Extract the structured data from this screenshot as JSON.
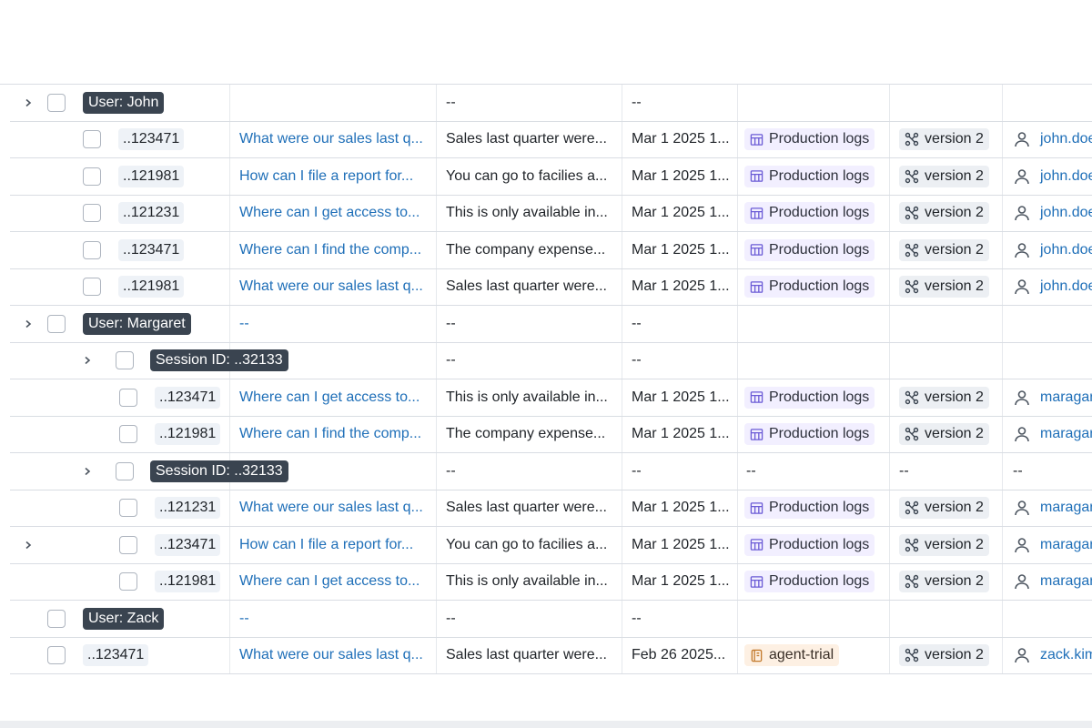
{
  "empty": "--",
  "rows": [
    {
      "kind": "group",
      "label": "User: John",
      "expand": true,
      "question": null,
      "answer": "--",
      "date": "--",
      "dataset": null,
      "version": null,
      "user": null
    },
    {
      "kind": "trace",
      "indent": 1,
      "id": "..123471",
      "question": "What were our sales last q...",
      "answer": "Sales last quarter were...",
      "date": "Mar 1 2025 1...",
      "dataset": "Production logs",
      "dataset_type": "table",
      "version": "version 2",
      "user": "john.doe"
    },
    {
      "kind": "trace",
      "indent": 1,
      "id": "..121981",
      "question": "How can I file a report for...",
      "answer": "You can go to facilies a...",
      "date": "Mar 1 2025 1...",
      "dataset": "Production logs",
      "dataset_type": "table",
      "version": "version 2",
      "user": "john.doe"
    },
    {
      "kind": "trace",
      "indent": 1,
      "id": "..121231",
      "question": "Where can I get access to...",
      "answer": "This is only available in...",
      "date": "Mar 1 2025 1...",
      "dataset": "Production logs",
      "dataset_type": "table",
      "version": "version 2",
      "user": "john.doe"
    },
    {
      "kind": "trace",
      "indent": 1,
      "id": "..123471",
      "question": "Where can I find the comp...",
      "answer": "The company expense...",
      "date": "Mar 1 2025 1...",
      "dataset": "Production logs",
      "dataset_type": "table",
      "version": "version 2",
      "user": "john.doe"
    },
    {
      "kind": "trace",
      "indent": 1,
      "id": "..121981",
      "question": "What were our sales last q...",
      "answer": "Sales last quarter were...",
      "date": "Mar 1 2025 1...",
      "dataset": "Production logs",
      "dataset_type": "table",
      "version": "version 2",
      "user": "john.doe"
    },
    {
      "kind": "group",
      "label": "User: Margaret",
      "expand": true,
      "question": "--",
      "answer": "--",
      "date": "--",
      "dataset": null,
      "version": null,
      "user": null
    },
    {
      "kind": "session",
      "label": "Session ID: ..32133",
      "expand": true,
      "question": null,
      "answer": "--",
      "date": "--",
      "dataset": null,
      "version": null,
      "user": null
    },
    {
      "kind": "trace",
      "indent": 2,
      "id": "..123471",
      "question": "Where can I get access to...",
      "answer": "This is only available in...",
      "date": "Mar 1 2025 1...",
      "dataset": "Production logs",
      "dataset_type": "table",
      "version": "version 2",
      "user": "maragaret"
    },
    {
      "kind": "trace",
      "indent": 2,
      "id": "..121981",
      "question": "Where can I find the comp...",
      "answer": "The company expense...",
      "date": "Mar 1 2025 1...",
      "dataset": "Production logs",
      "dataset_type": "table",
      "version": "version 2",
      "user": "maragaret"
    },
    {
      "kind": "session",
      "label": "Session ID: ..32133",
      "expand": true,
      "question": null,
      "answer": "--",
      "date": "--",
      "dataset": "--",
      "version": "--",
      "user": "--"
    },
    {
      "kind": "trace",
      "indent": 2,
      "id": "..121231",
      "question": "What were our sales last q...",
      "answer": "Sales last quarter were...",
      "date": "Mar 1 2025 1...",
      "dataset": "Production logs",
      "dataset_type": "table",
      "version": "version 2",
      "user": "maragaret"
    },
    {
      "kind": "trace",
      "indent": 2,
      "expand": true,
      "id": "..123471",
      "question": "How can I file a report for...",
      "answer": "You can go to facilies a...",
      "date": "Mar 1 2025 1...",
      "dataset": "Production logs",
      "dataset_type": "table",
      "version": "version 2",
      "user": "maragaret"
    },
    {
      "kind": "trace",
      "indent": 2,
      "id": "..121981",
      "question": "Where can I get access to...",
      "answer": "This is only available in...",
      "date": "Mar 1 2025 1...",
      "dataset": "Production logs",
      "dataset_type": "table",
      "version": "version 2",
      "user": "maragaret"
    },
    {
      "kind": "group",
      "label": "User: Zack",
      "expand": false,
      "question": "--",
      "answer": "--",
      "date": "--",
      "dataset": null,
      "version": null,
      "user": null
    },
    {
      "kind": "trace",
      "indent": 0,
      "id": "..123471",
      "question": "What were our sales last q...",
      "answer": "Sales last quarter were...",
      "date": "Feb 26 2025...",
      "dataset": "agent-trial",
      "dataset_type": "agent",
      "version": "version 2",
      "user": "zack.kim"
    }
  ]
}
